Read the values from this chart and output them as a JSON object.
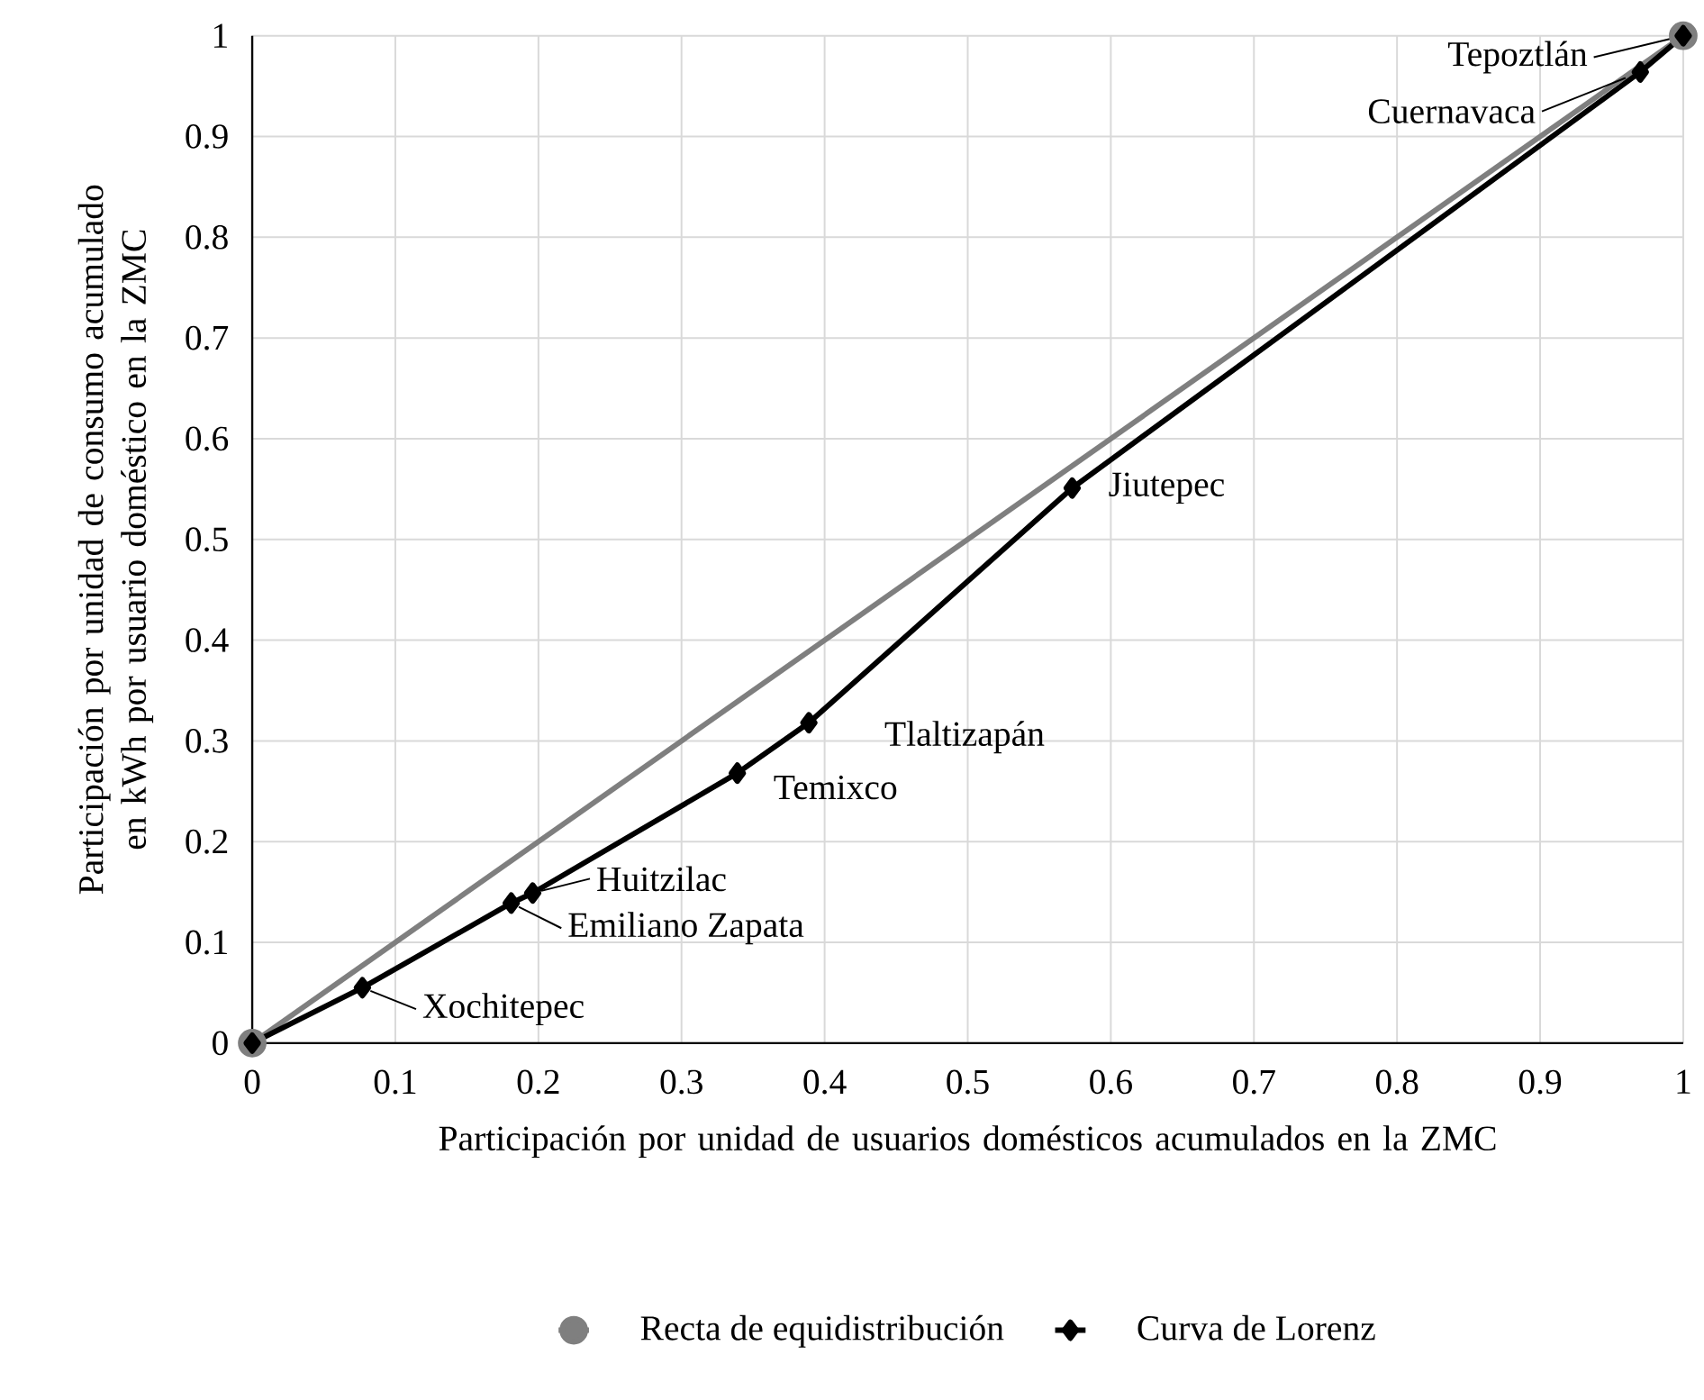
{
  "chart_data": {
    "type": "line",
    "xlabel": "Participación por unidad de usuarios domésticos acumulados en la ZMC",
    "ylabel": "Participación por unidad de consumo acumulado en kWh por usuario doméstico en la ZMC",
    "xlim": [
      0,
      1
    ],
    "ylim": [
      0,
      1
    ],
    "xticks": [
      0,
      0.1,
      0.2,
      0.3,
      0.4,
      0.5,
      0.6,
      0.7,
      0.8,
      0.9,
      1
    ],
    "yticks": [
      0,
      0.1,
      0.2,
      0.3,
      0.4,
      0.5,
      0.6,
      0.7,
      0.8,
      0.9,
      1
    ],
    "grid": true,
    "legend": "bottom",
    "line_style": "solid",
    "series": [
      {
        "name": "Recta de equidistribución",
        "color": "#7f7f7f",
        "marker": "circle",
        "x": [
          0,
          1
        ],
        "values": [
          0,
          1
        ]
      },
      {
        "name": "Curva de Lorenz",
        "color": "#000000",
        "marker": "diamond",
        "x": [
          0,
          0.077,
          0.181,
          0.196,
          0.339,
          0.389,
          0.573,
          0.97,
          1
        ],
        "values": [
          0,
          0.055,
          0.139,
          0.149,
          0.268,
          0.318,
          0.551,
          0.964,
          1
        ]
      }
    ],
    "annotations": [
      {
        "text": "Xochitepec",
        "x": 0.077,
        "y": 0.055
      },
      {
        "text": "Emiliano Zapata",
        "x": 0.181,
        "y": 0.139
      },
      {
        "text": "Huitzilac",
        "x": 0.196,
        "y": 0.149
      },
      {
        "text": "Temixco",
        "x": 0.339,
        "y": 0.268
      },
      {
        "text": "Tlaltizapán",
        "x": 0.389,
        "y": 0.318
      },
      {
        "text": "Jiutepec",
        "x": 0.573,
        "y": 0.551
      },
      {
        "text": "Cuernavaca",
        "x": 0.97,
        "y": 0.964
      },
      {
        "text": "Tepoztlán",
        "x": 1,
        "y": 1
      }
    ]
  }
}
